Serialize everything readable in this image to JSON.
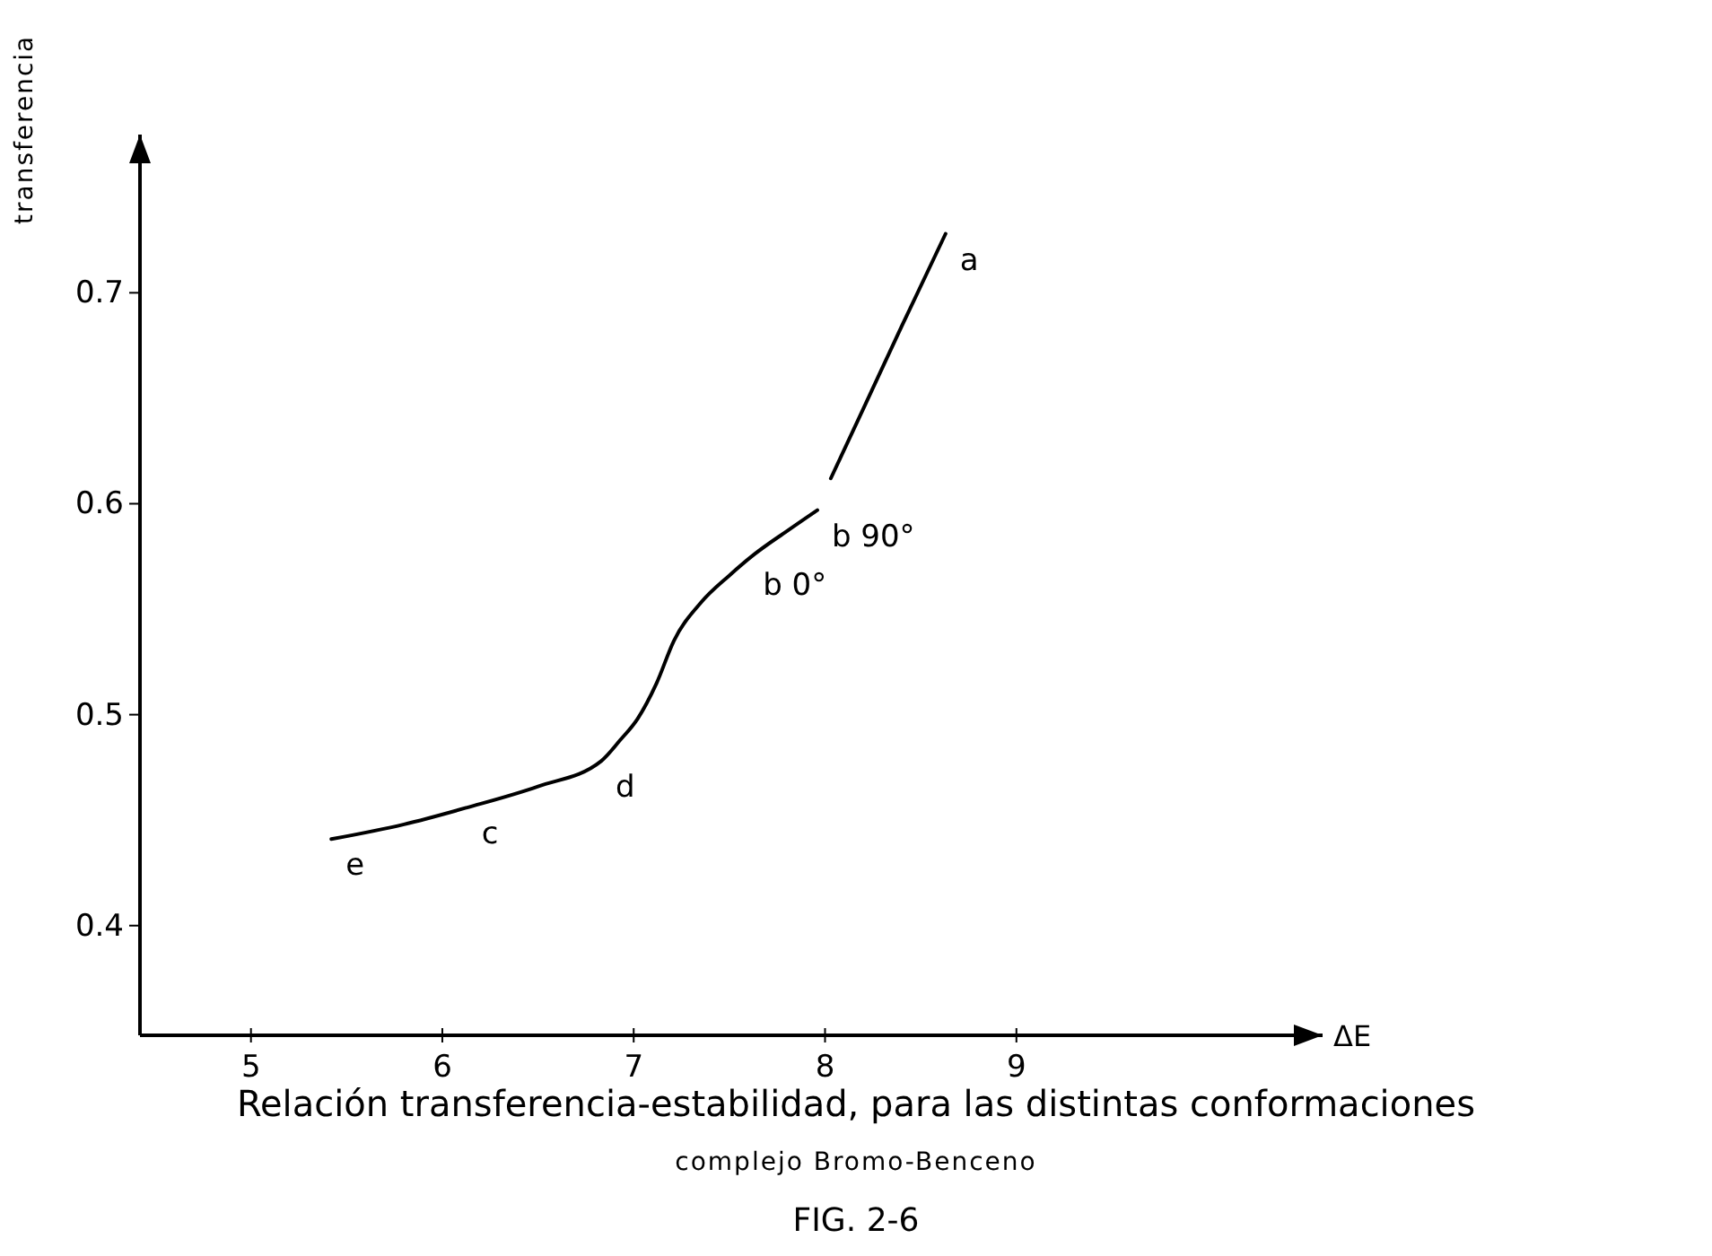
{
  "chart_data": {
    "type": "line",
    "title": "Relación transferencia-estabilidad, para las distintas conformaciones",
    "subtitle": "complejo Bromo-Benceno",
    "xlabel": "ΔE",
    "ylabel": "transferencia",
    "xlim": [
      4.42,
      10.6
    ],
    "ylim": [
      0.348,
      0.775
    ],
    "xticks": [
      5,
      6,
      7,
      8,
      9
    ],
    "yticks": [
      0.4,
      0.5,
      0.6,
      0.7
    ],
    "grid": false,
    "marker": "none",
    "line_style": "solid",
    "series": [
      {
        "color": "#000000",
        "x": [
          5.42,
          5.8,
          6.13,
          6.5,
          6.83,
          6.93,
          7.02,
          7.12,
          7.21,
          7.35,
          7.5,
          7.63,
          7.8,
          7.96,
          7.99,
          8.03,
          8.2,
          8.4,
          8.63
        ],
        "values": [
          0.441,
          0.448,
          0.456,
          0.466,
          0.478,
          0.488,
          0.498,
          0.515,
          0.535,
          0.553,
          0.566,
          0.576,
          0.587,
          0.597,
          null,
          0.612,
          0.645,
          0.684,
          0.728
        ]
      }
    ],
    "annotations": [
      {
        "text": "a",
        "x": 8.63,
        "y": 0.728
      },
      {
        "text": "b 90°",
        "x": 7.96,
        "y": 0.597
      },
      {
        "text": "b 0°",
        "x": 7.6,
        "y": 0.574
      },
      {
        "text": "c",
        "x": 6.13,
        "y": 0.456
      },
      {
        "text": "d",
        "x": 6.83,
        "y": 0.478
      },
      {
        "text": "e",
        "x": 5.42,
        "y": 0.441
      },
      "FIG. 2-6"
    ]
  }
}
